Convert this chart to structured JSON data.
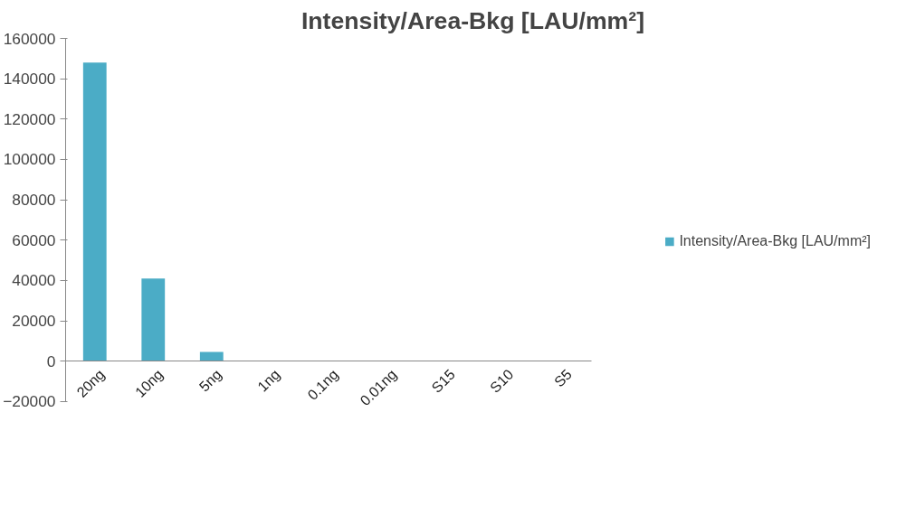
{
  "chart_data": {
    "type": "bar",
    "title": "Intensity/Area-Bkg [LAU/mm²]",
    "categories": [
      "20ng",
      "10ng",
      "5ng",
      "1ng",
      "0.1ng",
      "0.01ng",
      "S15",
      "S10",
      "S5"
    ],
    "series": [
      {
        "name": "Intensity/Area-Bkg [LAU/mm²]",
        "color": "#4bacc6",
        "values": [
          148000,
          41000,
          4500,
          0,
          0,
          0,
          0,
          0,
          0
        ]
      }
    ],
    "ylim": [
      -20000,
      160000
    ],
    "yticks": [
      -20000,
      0,
      20000,
      40000,
      60000,
      80000,
      100000,
      120000,
      140000,
      160000
    ],
    "grid": false,
    "legend": "right"
  }
}
